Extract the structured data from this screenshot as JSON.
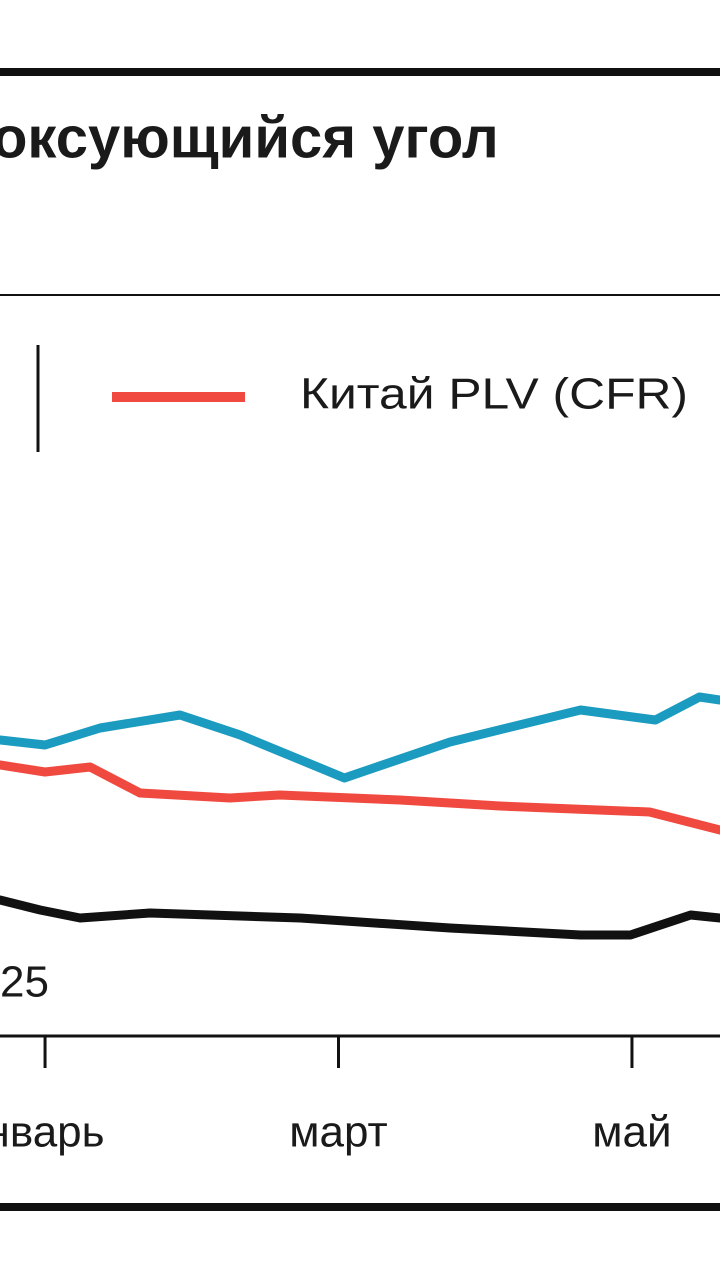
{
  "chart_data": {
    "type": "line",
    "title": "оксующийся угол",
    "annotation": "25",
    "xlim": [
      0.693,
      5.6
    ],
    "xticks": [
      {
        "value": 1,
        "label": "нварь"
      },
      {
        "value": 3,
        "label": "март"
      },
      {
        "value": 5,
        "label": "май"
      }
    ],
    "ylim": [
      0,
      100
    ],
    "grid": false,
    "series": [
      {
        "color": "#1b9bbf",
        "x": [
          0.693,
          1,
          1.375,
          1.92,
          2.33,
          3.04,
          3.76,
          4.65,
          5.16,
          5.46,
          5.6
        ],
        "values": [
          60,
          59,
          62.4,
          65,
          61,
          52.4,
          59.6,
          66,
          64,
          68.6,
          68
        ]
      },
      {
        "name": "Китай PLV (CFR)",
        "color": "#f0493f",
        "x": [
          0.693,
          1,
          1.307,
          1.647,
          2.26,
          2.6,
          3.42,
          4.1,
          5.12,
          5.6
        ],
        "values": [
          55,
          53.6,
          54.6,
          49.4,
          48.4,
          49,
          48,
          46.8,
          45.6,
          42
        ]
      },
      {
        "color": "#111111",
        "x": [
          0.693,
          0.966,
          1.239,
          1.716,
          2.74,
          3.76,
          4.65,
          4.99,
          5.4,
          5.6
        ],
        "values": [
          28,
          26,
          24.4,
          25.4,
          24.4,
          22.4,
          21,
          21,
          25,
          24.4
        ]
      }
    ]
  }
}
